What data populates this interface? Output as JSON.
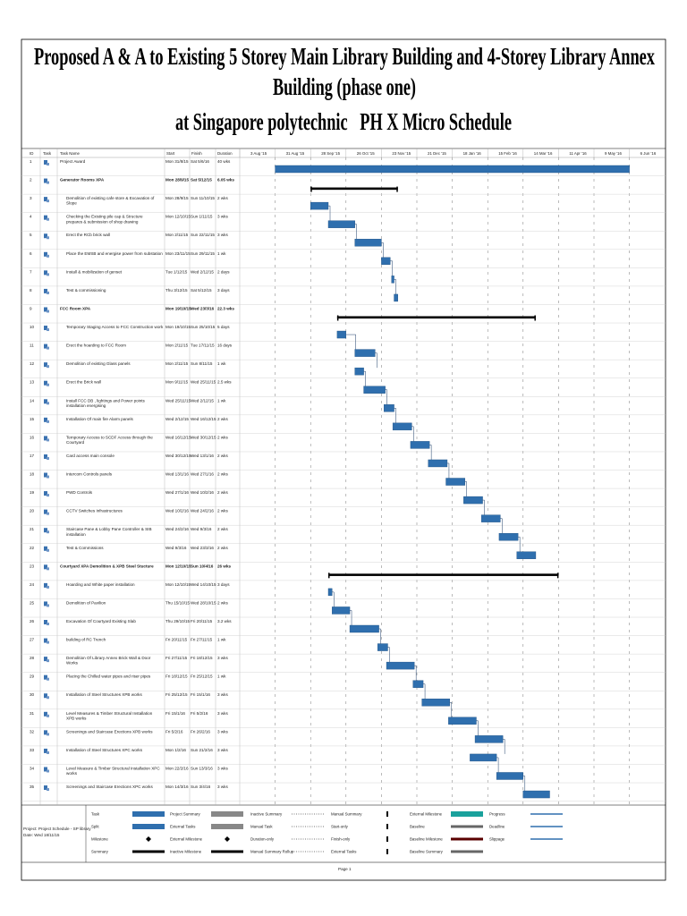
{
  "header": {
    "title_lines": [
      "Proposed A & A to Existing 5 Storey Main Library Building and 4-Storey Library Annex",
      "Building (phase one)",
      "at Singapore polytechnic   PH X Micro Schedule"
    ]
  },
  "table": {
    "columns": [
      "ID",
      "Task",
      "Task Name",
      "Start",
      "Finish",
      "Duration"
    ],
    "timescale": [
      "3 Aug '15",
      "31 Aug '15",
      "28 Sep '15",
      "26 Oct '15",
      "23 Nov '15",
      "21 Dec '15",
      "18 Jan '16",
      "15 Feb '16",
      "14 Mar '16",
      "11 Apr '16",
      "9 May '16",
      "6 Jun '16"
    ],
    "rows": [
      {
        "id": "1",
        "name": "Project Award",
        "start": "Mon 31/8/15",
        "finish": "Sat 5/6/16",
        "duration": "40 wks"
      },
      {
        "id": "2",
        "name": "Generator Rooms XPA",
        "start": "Mon 28/9/15",
        "finish": "Sat 5/12/15",
        "duration": "6.05 wks",
        "summary": true
      },
      {
        "id": "3",
        "name": "Demolition of existing cafe store & Excavation of Slope",
        "start": "Mon 28/9/15",
        "finish": "Sun 11/10/15",
        "duration": "2 wks"
      },
      {
        "id": "4",
        "name": "Checking the Existing pile cap & Structure prepares & submission of shop drawing",
        "start": "Mon 12/10/15",
        "finish": "Sun 1/11/15",
        "duration": "3 wks"
      },
      {
        "id": "5",
        "name": "Erect the RCb brick wall",
        "start": "Mon 2/11/15",
        "finish": "Sun 22/11/15",
        "duration": "3 wks"
      },
      {
        "id": "6",
        "name": "Place the EMSB and energise power from substation",
        "start": "Mon 23/11/15",
        "finish": "Sun 29/11/15",
        "duration": "1 wk"
      },
      {
        "id": "7",
        "name": "Install & mobilization of genset",
        "start": "Tue 1/12/15",
        "finish": "Wed 2/12/15",
        "duration": "2 days"
      },
      {
        "id": "8",
        "name": "Test & commissioning",
        "start": "Thu 3/12/15",
        "finish": "Sat 5/12/15",
        "duration": "3 days"
      },
      {
        "id": "9",
        "name": "FCC Room XPA",
        "start": "Mon 19/10/15",
        "finish": "Wed 23/3/16",
        "duration": "22.3 wks",
        "summary": true
      },
      {
        "id": "10",
        "name": "Temporary Staging Access to FCC Construction work",
        "start": "Mon 19/10/15",
        "finish": "Sun 25/10/15",
        "duration": "5 days"
      },
      {
        "id": "11",
        "name": "Erect the hoarding to FCC Room",
        "start": "Mon 2/11/15",
        "finish": "Tue 17/11/15",
        "duration": "16 days"
      },
      {
        "id": "12",
        "name": "Demolition of existing Glass panels",
        "start": "Mon 2/11/15",
        "finish": "Sun 8/11/15",
        "duration": "1 wk"
      },
      {
        "id": "13",
        "name": "Erect the Brick wall",
        "start": "Mon 9/11/15",
        "finish": "Wed 25/11/15",
        "duration": "2.5 wks"
      },
      {
        "id": "14",
        "name": "Install FCC DB , lightings and Power points installation energising",
        "start": "Wed 25/11/15",
        "finish": "Wed 2/12/15",
        "duration": "1 wk"
      },
      {
        "id": "15",
        "name": "Installation Of main fire Alarm panels",
        "start": "Wed 2/12/15",
        "finish": "Wed 16/12/15",
        "duration": "2 wks"
      },
      {
        "id": "16",
        "name": "Temporary Access to SCDF Access through the Courtyard",
        "start": "Wed 16/12/15",
        "finish": "Wed 30/12/15",
        "duration": "2 wks"
      },
      {
        "id": "17",
        "name": "Card access main console",
        "start": "Wed 30/12/15",
        "finish": "Wed 13/1/16",
        "duration": "2 wks"
      },
      {
        "id": "18",
        "name": "Intercom Controls panels",
        "start": "Wed 13/1/16",
        "finish": "Wed 27/1/16",
        "duration": "2 wks"
      },
      {
        "id": "19",
        "name": "PWD Controls",
        "start": "Wed 27/1/16",
        "finish": "Wed 10/2/16",
        "duration": "2 wks"
      },
      {
        "id": "20",
        "name": "CCTV Switches Infrastructures",
        "start": "Wed 10/2/16",
        "finish": "Wed 24/2/16",
        "duration": "2 wks"
      },
      {
        "id": "21",
        "name": "Staircase Pane & Lobby Pane Controller & SIB installation",
        "start": "Wed 24/2/16",
        "finish": "Wed 9/3/16",
        "duration": "2 wks"
      },
      {
        "id": "22",
        "name": "Test & Commissions",
        "start": "Wed 9/3/16",
        "finish": "Wed 23/3/16",
        "duration": "2 wks"
      },
      {
        "id": "23",
        "name": "Courtyard XPA Demolition & XPB Steel Stucture",
        "start": "Mon 12/10/15",
        "finish": "Sun 10/4/16",
        "duration": "26 wks",
        "summary": true
      },
      {
        "id": "24",
        "name": "Hoarding and White paper installation",
        "start": "Mon 12/10/15",
        "finish": "Wed 14/10/15",
        "duration": "3 days"
      },
      {
        "id": "25",
        "name": "Demolition of Pavilion",
        "start": "Thu 15/10/15",
        "finish": "Wed 28/10/15",
        "duration": "2 wks"
      },
      {
        "id": "26",
        "name": "Excavation Of Courtyard Existing Slab",
        "start": "Thu 29/10/15",
        "finish": "Fri 20/11/15",
        "duration": "3.2 wks"
      },
      {
        "id": "27",
        "name": "building of RC Trench",
        "start": "Fri 20/11/15",
        "finish": "Fri 27/11/15",
        "duration": "1 wk"
      },
      {
        "id": "28",
        "name": "Demolition Of Library Annex Brick Wall & Door Works",
        "start": "Fri 27/11/15",
        "finish": "Fri 18/12/15",
        "duration": "3 wks"
      },
      {
        "id": "29",
        "name": "Placing the Chilled water pipes and riser pipes",
        "start": "Fri 18/12/15",
        "finish": "Fri 25/12/15",
        "duration": "1 wk"
      },
      {
        "id": "30",
        "name": "Installation of Steel Structures XPB works",
        "start": "Fri 25/12/15",
        "finish": "Fri 15/1/16",
        "duration": "3 wks"
      },
      {
        "id": "31",
        "name": "Level Measures & Timber Structural Installation XPB works",
        "start": "Fri 15/1/16",
        "finish": "Fri 5/2/16",
        "duration": "3 wks"
      },
      {
        "id": "32",
        "name": "Screenings and Staircase Erections XPB works",
        "start": "Fri 5/2/16",
        "finish": "Fri 26/2/16",
        "duration": "3 wks"
      },
      {
        "id": "33",
        "name": "Installation of Steel Structures XPC works",
        "start": "Mon 1/2/16",
        "finish": "Sun 21/2/16",
        "duration": "3 wks"
      },
      {
        "id": "34",
        "name": "Level Measure & Timber Structural Installation XPC works",
        "start": "Mon 22/2/16",
        "finish": "Sun 13/3/16",
        "duration": "3 wks"
      },
      {
        "id": "35",
        "name": "Screenings and Staircase Erections XPC works",
        "start": "Mon 14/3/16",
        "finish": "Sun 3/4/16",
        "duration": "3 wks"
      }
    ]
  },
  "legend": [
    [
      "Task",
      "Split",
      "Milestone",
      "Summary"
    ],
    [
      "Project Summary",
      "External Tasks",
      "External Milestone",
      "Inactive Milestone"
    ],
    [
      "Inactive Summary",
      "Manual Task",
      "Duration-only",
      "Manual Summary Rollup"
    ],
    [
      "Manual Summary",
      "Start-only",
      "Finish-only",
      "External Tasks"
    ],
    [
      "External Milestone",
      "Baseline",
      "Baseline Milestone",
      "Baseline Summary"
    ],
    [
      "Progress",
      "Deadline",
      "Slippage"
    ]
  ],
  "footer": {
    "project": "Project: Project Schedule - SP library",
    "date": "Date: Wed 18/11/15",
    "page": "Page 1"
  }
}
